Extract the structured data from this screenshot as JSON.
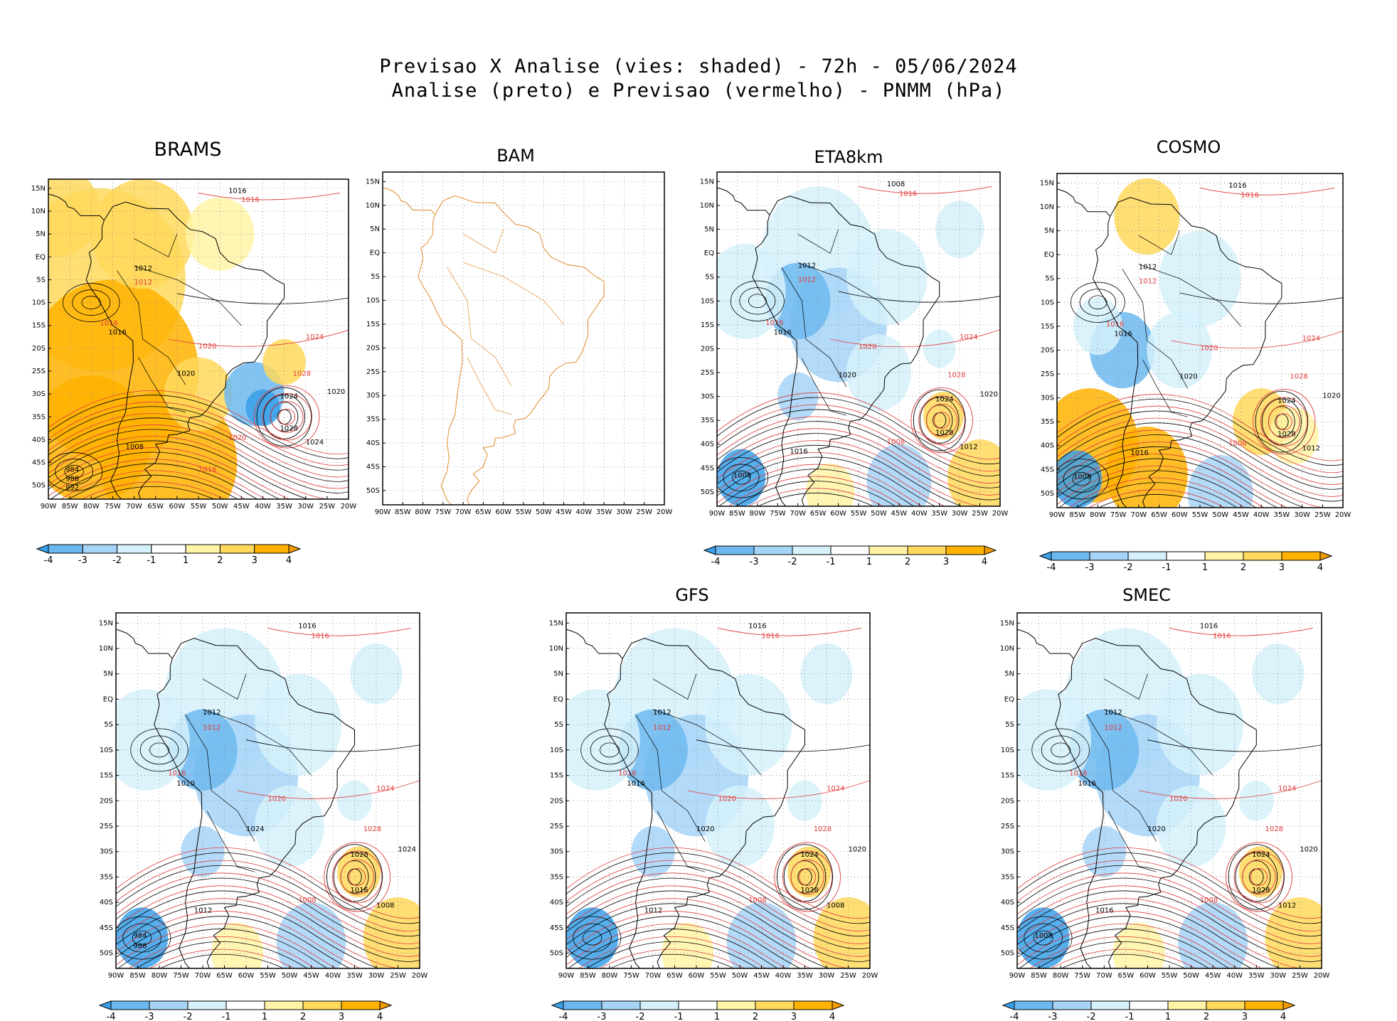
{
  "header": {
    "line1": "Previsao X Analise (vies: shaded) - 72h - 05/06/2024",
    "line2": "Analise (preto) e Previsao (vermelho) - PNMM (hPa)"
  },
  "axes": {
    "lat_labels": [
      "15N",
      "10N",
      "5N",
      "EQ",
      "5S",
      "10S",
      "15S",
      "20S",
      "25S",
      "30S",
      "35S",
      "40S",
      "45S",
      "50S"
    ],
    "lon_labels": [
      "90W",
      "85W",
      "80W",
      "75W",
      "70W",
      "65W",
      "60W",
      "55W",
      "50W",
      "45W",
      "40W",
      "35W",
      "30W",
      "25W",
      "20W"
    ]
  },
  "colorbar": {
    "labels": [
      "-4",
      "-3",
      "-2",
      "-1",
      "1",
      "2",
      "3",
      "4"
    ],
    "colors": [
      "#3aa0ea",
      "#6db8f0",
      "#a6d4f7",
      "#d6f1fb",
      "#ffffff",
      "#fff4a6",
      "#ffd95c",
      "#ffb300",
      "#f29a00"
    ]
  },
  "colors": {
    "analysis_contour": "#000000",
    "forecast_contour": "#e03a3a",
    "coastline_bam": "#e08a2c",
    "grid": "#888888"
  },
  "panels": [
    {
      "id": "brams",
      "title": "BRAMS",
      "bias": "warm",
      "has_colorbar": true,
      "iso_black": [
        "1016",
        "1012",
        "1016",
        "1020",
        "1024",
        "1028",
        "1020",
        "1008",
        "1024",
        "984",
        "988",
        "992"
      ],
      "iso_red": [
        "1016",
        "1012",
        "1016",
        "1020",
        "1024",
        "1028",
        "1020",
        "1016"
      ]
    },
    {
      "id": "bam",
      "title": "BAM",
      "bias": "none",
      "has_colorbar": false,
      "iso_black": [],
      "iso_red": []
    },
    {
      "id": "eta8km",
      "title": "ETA8km",
      "bias": "cool",
      "has_colorbar": true,
      "iso_black": [
        "1008",
        "1012",
        "1016",
        "1020",
        "1024",
        "1028",
        "1020",
        "1016",
        "1012",
        "1008"
      ],
      "iso_red": [
        "1016",
        "1012",
        "1016",
        "1020",
        "1024",
        "1028",
        "1008"
      ]
    },
    {
      "id": "cosmo",
      "title": "COSMO",
      "bias": "mixed",
      "has_colorbar": true,
      "iso_black": [
        "1016",
        "1012",
        "1016",
        "1020",
        "1024",
        "1028",
        "1020",
        "1016",
        "1012",
        "1008"
      ],
      "iso_red": [
        "1016",
        "1012",
        "1016",
        "1020",
        "1024",
        "1028",
        "1008"
      ]
    },
    {
      "id": "bottom-left",
      "title": "",
      "bias": "cool",
      "has_colorbar": true,
      "iso_black": [
        "1016",
        "1012",
        "1020",
        "1024",
        "1028",
        "1016",
        "1024",
        "1012",
        "1008",
        "984",
        "988"
      ],
      "iso_red": [
        "1016",
        "1012",
        "1016",
        "1020",
        "1024",
        "1028",
        "1008"
      ]
    },
    {
      "id": "gfs",
      "title": "GFS",
      "bias": "cool",
      "has_colorbar": true,
      "iso_black": [
        "1016",
        "1012",
        "1016",
        "1020",
        "1024",
        "1028",
        "1020",
        "1012",
        "1008"
      ],
      "iso_red": [
        "1016",
        "1012",
        "1016",
        "1020",
        "1024",
        "1028",
        "1008"
      ]
    },
    {
      "id": "smec",
      "title": "SMEC",
      "bias": "cool",
      "has_colorbar": true,
      "iso_black": [
        "1016",
        "1012",
        "1016",
        "1020",
        "1024",
        "1028",
        "1020",
        "1016",
        "1012",
        "1008"
      ],
      "iso_red": [
        "1016",
        "1012",
        "1016",
        "1020",
        "1024",
        "1028",
        "1008"
      ]
    }
  ]
}
